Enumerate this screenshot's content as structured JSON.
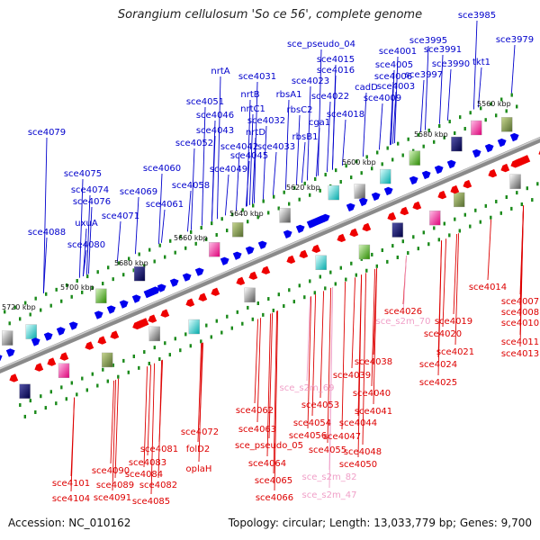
{
  "title": "Sorangium cellulosum 'So ce 56', complete genome",
  "footer": {
    "accession": "Accession: NC_010162",
    "summary": "Topology: circular; Length: 13,033,779 bp; Genes: 9,700"
  },
  "colors": {
    "forward_label": "#0000cc",
    "reverse_label": "#dd0000",
    "rna_label": "#f0a0c8",
    "forward_gene": "#0000ee",
    "reverse_gene": "#ee0000",
    "backbone": "#8a8a8a",
    "tick": "#1a8a1a"
  },
  "scale_labels": [
    "5560 kbp",
    "5580 kbp",
    "5600 kbp",
    "5620 kbp",
    "5640 kbp",
    "5660 kbp",
    "5680 kbp",
    "5700 kbp",
    "5720 kbp"
  ],
  "forward_labels": [
    "sce3985",
    "sce3979",
    "sce_pseudo_04",
    "sce3995",
    "sce4001",
    "sce3991",
    "sce4015",
    "sce4016",
    "sce4005",
    "sce3990",
    "tkt1",
    "nrtA",
    "sce4031",
    "sce4006",
    "sce3997",
    "sce4023",
    "cadD",
    "sce4003",
    "nrtB",
    "rbsA1",
    "sce4022",
    "sce4009",
    "sce4051",
    "nrtC1",
    "rbsC2",
    "sce4018",
    "sce4046",
    "sce4032",
    "cga1",
    "sce4043",
    "nrtD",
    "rbsB1",
    "sce4052",
    "sce4042",
    "sce4033",
    "sce4079",
    "sce4045",
    "sce4060",
    "sce4049",
    "sce4075",
    "sce4058",
    "sce4074",
    "sce4069",
    "sce4076",
    "sce4061",
    "sce4071",
    "uxuA",
    "sce4088",
    "sce4080"
  ],
  "reverse_labels": [
    "sce4014",
    "sce4007",
    "sce4008",
    "sce4010",
    "sce4026",
    "sce4019",
    "sce4020",
    "sce4011",
    "sce4021",
    "sce4013",
    "sce4024",
    "sce4038",
    "sce4025",
    "sce4039",
    "sce4040",
    "sce4062",
    "sce4041",
    "sce4053",
    "sce4054",
    "sce4044",
    "sce4072",
    "sce4063",
    "sce4056",
    "sce4047",
    "folD2",
    "sce4081",
    "sce_pseudo_05",
    "sce4055",
    "sce4048",
    "sce4083",
    "oplaH",
    "sce4064",
    "sce4050",
    "sce4090",
    "sce4084",
    "sce4065",
    "sce4101",
    "sce4089",
    "sce4082",
    "sce4091",
    "sce4085",
    "sce4066",
    "sce4104"
  ],
  "rna_labels": [
    "sce_s2m_70",
    "sce_s2m_69",
    "sce_s2m_82",
    "sce_s2m_47"
  ]
}
